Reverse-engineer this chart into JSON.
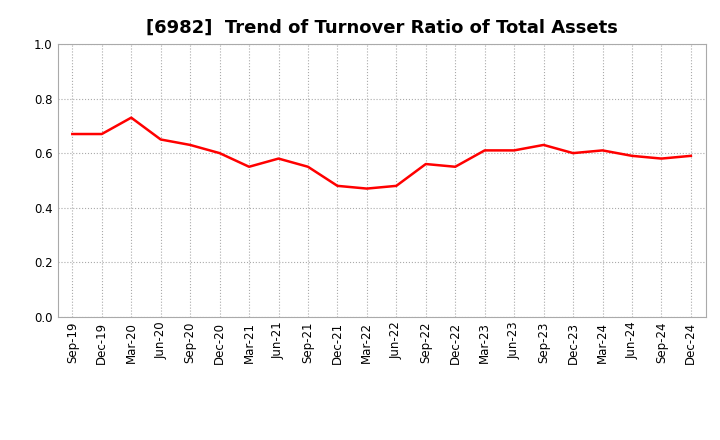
{
  "title": "[6982]  Trend of Turnover Ratio of Total Assets",
  "labels": [
    "Sep-19",
    "Dec-19",
    "Mar-20",
    "Jun-20",
    "Sep-20",
    "Dec-20",
    "Mar-21",
    "Jun-21",
    "Sep-21",
    "Dec-21",
    "Mar-22",
    "Jun-22",
    "Sep-22",
    "Dec-22",
    "Mar-23",
    "Jun-23",
    "Sep-23",
    "Dec-23",
    "Mar-24",
    "Jun-24",
    "Sep-24",
    "Dec-24"
  ],
  "values": [
    0.67,
    0.67,
    0.73,
    0.65,
    0.63,
    0.6,
    0.55,
    0.58,
    0.55,
    0.48,
    0.47,
    0.48,
    0.56,
    0.55,
    0.61,
    0.61,
    0.63,
    0.6,
    0.61,
    0.59,
    0.58,
    0.59
  ],
  "line_color": "#FF0000",
  "line_width": 1.8,
  "background_color": "#FFFFFF",
  "grid_color": "#AAAAAA",
  "ylim": [
    0.0,
    1.0
  ],
  "yticks": [
    0.0,
    0.2,
    0.4,
    0.6,
    0.8,
    1.0
  ],
  "title_fontsize": 13,
  "tick_fontsize": 8.5,
  "spine_color": "#AAAAAA"
}
